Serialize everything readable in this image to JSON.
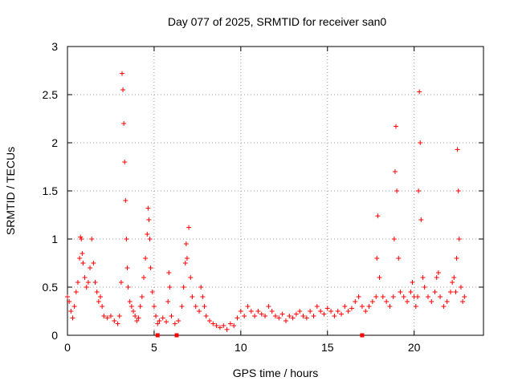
{
  "chart_data": {
    "type": "scatter",
    "title": "Day 077 of 2025, SRMTID for receiver san0",
    "xlabel": "GPS time / hours",
    "ylabel": "SRMTID / TECUs",
    "xlim": [
      0,
      24
    ],
    "ylim": [
      0,
      3
    ],
    "x_ticks": [
      "0",
      "5",
      "10",
      "15",
      "20"
    ],
    "y_ticks": [
      "0",
      "0.5",
      "1",
      "1.5",
      "2",
      "2.5",
      "3"
    ],
    "grid": true,
    "marker": "+",
    "series_color": "#ff0000",
    "series": [
      {
        "name": "SRMTID",
        "points": [
          [
            0.0,
            0.4
          ],
          [
            0.1,
            0.35
          ],
          [
            0.2,
            0.25
          ],
          [
            0.3,
            0.18
          ],
          [
            0.4,
            0.3
          ],
          [
            0.5,
            0.45
          ],
          [
            0.6,
            0.55
          ],
          [
            0.7,
            0.8
          ],
          [
            0.75,
            1.02
          ],
          [
            0.8,
            1.0
          ],
          [
            0.85,
            0.85
          ],
          [
            0.9,
            0.75
          ],
          [
            1.0,
            0.6
          ],
          [
            1.1,
            0.5
          ],
          [
            1.2,
            0.55
          ],
          [
            1.3,
            0.7
          ],
          [
            1.4,
            1.0
          ],
          [
            1.5,
            0.75
          ],
          [
            1.6,
            0.55
          ],
          [
            1.7,
            0.45
          ],
          [
            1.8,
            0.35
          ],
          [
            1.9,
            0.4
          ],
          [
            2.0,
            0.3
          ],
          [
            2.1,
            0.2
          ],
          [
            2.3,
            0.18
          ],
          [
            2.5,
            0.2
          ],
          [
            2.7,
            0.15
          ],
          [
            2.9,
            0.12
          ],
          [
            3.0,
            0.2
          ],
          [
            3.1,
            0.55
          ],
          [
            3.15,
            2.72
          ],
          [
            3.2,
            2.55
          ],
          [
            3.25,
            2.2
          ],
          [
            3.3,
            1.8
          ],
          [
            3.35,
            1.4
          ],
          [
            3.4,
            1.0
          ],
          [
            3.45,
            0.7
          ],
          [
            3.5,
            0.5
          ],
          [
            3.6,
            0.35
          ],
          [
            3.7,
            0.3
          ],
          [
            3.8,
            0.25
          ],
          [
            3.9,
            0.2
          ],
          [
            4.0,
            0.15
          ],
          [
            4.1,
            0.18
          ],
          [
            4.2,
            0.3
          ],
          [
            4.3,
            0.4
          ],
          [
            4.4,
            0.6
          ],
          [
            4.5,
            0.8
          ],
          [
            4.6,
            1.05
          ],
          [
            4.65,
            1.32
          ],
          [
            4.7,
            1.2
          ],
          [
            4.75,
            1.0
          ],
          [
            4.8,
            0.7
          ],
          [
            4.9,
            0.45
          ],
          [
            5.0,
            0.3
          ],
          [
            5.1,
            0.2
          ],
          [
            5.2,
            0.12
          ],
          [
            5.3,
            0.15
          ],
          [
            5.5,
            0.18
          ],
          [
            5.7,
            0.14
          ],
          [
            5.8,
            0.35
          ],
          [
            5.85,
            0.65
          ],
          [
            5.9,
            0.5
          ],
          [
            6.0,
            0.2
          ],
          [
            6.2,
            0.12
          ],
          [
            6.4,
            0.15
          ],
          [
            6.6,
            0.3
          ],
          [
            6.7,
            0.5
          ],
          [
            6.8,
            0.75
          ],
          [
            6.85,
            0.95
          ],
          [
            6.9,
            0.8
          ],
          [
            7.0,
            1.12
          ],
          [
            7.1,
            0.6
          ],
          [
            7.2,
            0.4
          ],
          [
            7.4,
            0.3
          ],
          [
            7.6,
            0.25
          ],
          [
            7.7,
            0.5
          ],
          [
            7.8,
            0.4
          ],
          [
            7.9,
            0.3
          ],
          [
            8.0,
            0.2
          ],
          [
            8.2,
            0.15
          ],
          [
            8.4,
            0.12
          ],
          [
            8.6,
            0.1
          ],
          [
            8.8,
            0.08
          ],
          [
            9.0,
            0.1
          ],
          [
            9.2,
            0.06
          ],
          [
            9.4,
            0.12
          ],
          [
            9.6,
            0.1
          ],
          [
            9.8,
            0.18
          ],
          [
            10.0,
            0.25
          ],
          [
            10.2,
            0.2
          ],
          [
            10.4,
            0.3
          ],
          [
            10.6,
            0.25
          ],
          [
            10.8,
            0.2
          ],
          [
            11.0,
            0.25
          ],
          [
            11.2,
            0.22
          ],
          [
            11.4,
            0.2
          ],
          [
            11.6,
            0.3
          ],
          [
            11.8,
            0.25
          ],
          [
            12.0,
            0.2
          ],
          [
            12.2,
            0.18
          ],
          [
            12.4,
            0.22
          ],
          [
            12.6,
            0.15
          ],
          [
            12.8,
            0.2
          ],
          [
            13.0,
            0.18
          ],
          [
            13.2,
            0.22
          ],
          [
            13.4,
            0.25
          ],
          [
            13.6,
            0.2
          ],
          [
            13.8,
            0.18
          ],
          [
            14.0,
            0.25
          ],
          [
            14.2,
            0.2
          ],
          [
            14.4,
            0.3
          ],
          [
            14.6,
            0.25
          ],
          [
            14.8,
            0.22
          ],
          [
            15.0,
            0.28
          ],
          [
            15.2,
            0.25
          ],
          [
            15.4,
            0.2
          ],
          [
            15.6,
            0.25
          ],
          [
            15.8,
            0.22
          ],
          [
            16.0,
            0.3
          ],
          [
            16.2,
            0.25
          ],
          [
            16.4,
            0.28
          ],
          [
            16.6,
            0.35
          ],
          [
            16.8,
            0.4
          ],
          [
            17.0,
            0.3
          ],
          [
            17.2,
            0.25
          ],
          [
            17.4,
            0.3
          ],
          [
            17.6,
            0.35
          ],
          [
            17.8,
            0.4
          ],
          [
            17.85,
            0.8
          ],
          [
            17.9,
            1.24
          ],
          [
            18.0,
            0.6
          ],
          [
            18.2,
            0.4
          ],
          [
            18.4,
            0.35
          ],
          [
            18.6,
            0.3
          ],
          [
            18.8,
            0.4
          ],
          [
            18.85,
            1.0
          ],
          [
            18.9,
            1.7
          ],
          [
            18.95,
            2.17
          ],
          [
            19.0,
            1.5
          ],
          [
            19.1,
            0.8
          ],
          [
            19.2,
            0.45
          ],
          [
            19.4,
            0.4
          ],
          [
            19.6,
            0.35
          ],
          [
            19.8,
            0.45
          ],
          [
            19.9,
            0.55
          ],
          [
            20.0,
            0.4
          ],
          [
            20.1,
            0.3
          ],
          [
            20.2,
            0.4
          ],
          [
            20.25,
            1.5
          ],
          [
            20.3,
            2.53
          ],
          [
            20.35,
            2.0
          ],
          [
            20.4,
            1.2
          ],
          [
            20.5,
            0.6
          ],
          [
            20.6,
            0.5
          ],
          [
            20.8,
            0.4
          ],
          [
            21.0,
            0.35
          ],
          [
            21.2,
            0.45
          ],
          [
            21.3,
            0.6
          ],
          [
            21.4,
            0.65
          ],
          [
            21.5,
            0.4
          ],
          [
            21.7,
            0.3
          ],
          [
            21.9,
            0.35
          ],
          [
            22.1,
            0.45
          ],
          [
            22.2,
            0.55
          ],
          [
            22.3,
            0.6
          ],
          [
            22.4,
            0.45
          ],
          [
            22.45,
            0.8
          ],
          [
            22.5,
            1.93
          ],
          [
            22.55,
            1.5
          ],
          [
            22.6,
            1.0
          ],
          [
            22.7,
            0.5
          ],
          [
            22.8,
            0.35
          ],
          [
            22.9,
            0.4
          ]
        ]
      }
    ],
    "outlier_markers": [
      [
        5.2,
        0.0
      ],
      [
        6.3,
        0.0
      ],
      [
        17.0,
        0.0
      ]
    ]
  }
}
